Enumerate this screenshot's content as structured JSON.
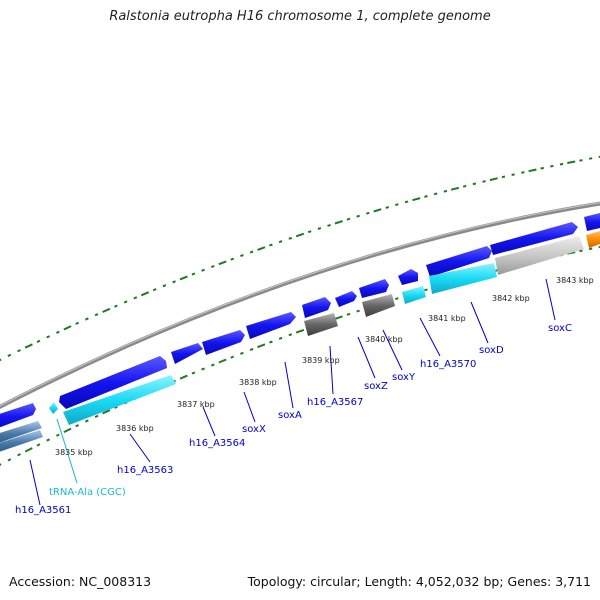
{
  "title": "Ralstonia eutropha H16 chromosome 1, complete genome",
  "footer": {
    "accession": "Accession: NC_008313",
    "summary": "Topology: circular; Length: 4,052,032 bp; Genes: 3,711"
  },
  "colors": {
    "gene": "#1010e8",
    "gene_light": "#4c4cff",
    "rna": "#17d4f0",
    "pseudo": "#606060",
    "backbone": "#888888",
    "tick": "#1f7a1f",
    "gene_label": "#0000cc",
    "rna_label": "#16b9d4",
    "orange": "#ff8c00",
    "steel": "#4a7aa8"
  },
  "scale": {
    "unit": "kbp",
    "labels": [
      "3835 kbp",
      "3836 kbp",
      "3837 kbp",
      "3838 kbp",
      "3839 kbp",
      "3840 kbp",
      "3841 kbp",
      "3842 kbp",
      "3843 kbp"
    ]
  },
  "features": [
    {
      "name": "h16_A3561",
      "kind": "gene"
    },
    {
      "name": "tRNA-Ala (CGC)",
      "kind": "rna"
    },
    {
      "name": "h16_A3563",
      "kind": "gene"
    },
    {
      "name": "h16_A3564",
      "kind": "gene"
    },
    {
      "name": "soxX",
      "kind": "gene"
    },
    {
      "name": "soxA",
      "kind": "gene"
    },
    {
      "name": "h16_A3567",
      "kind": "gene"
    },
    {
      "name": "soxZ",
      "kind": "gene"
    },
    {
      "name": "soxY",
      "kind": "gene"
    },
    {
      "name": "h16_A3570",
      "kind": "gene"
    },
    {
      "name": "soxD",
      "kind": "gene"
    },
    {
      "name": "soxC",
      "kind": "gene"
    }
  ]
}
